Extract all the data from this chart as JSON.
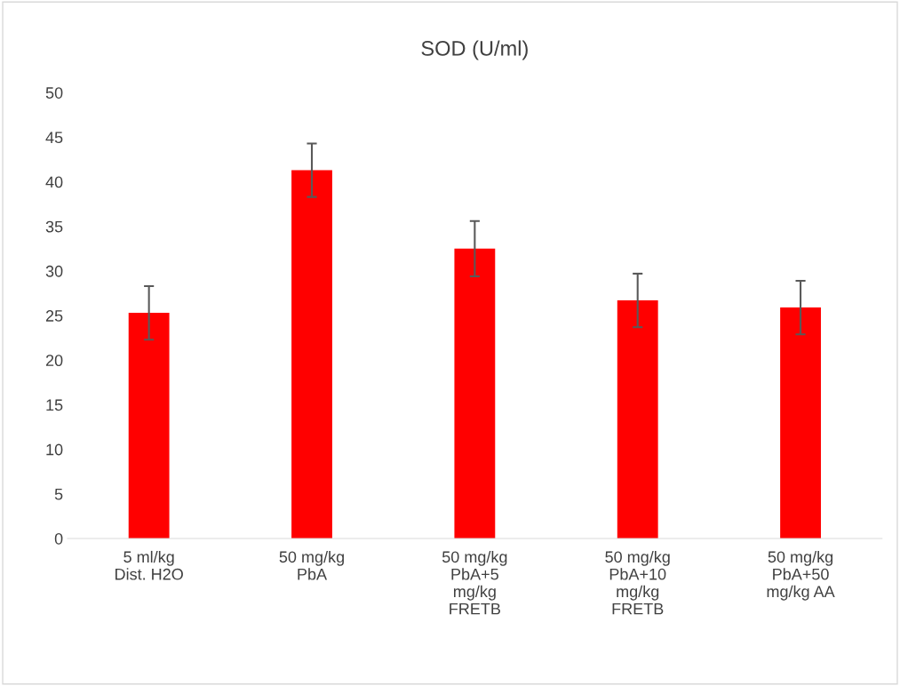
{
  "chart_data": {
    "type": "bar",
    "title": "SOD (U/ml)",
    "categories": [
      "5 ml/kg\nDist. H2O",
      "50 mg/kg\nPbA",
      "50 mg/kg\nPbA+5\nmg/kg\nFRETB",
      "50 mg/kg\nPbA+10\nmg/kg\nFRETB",
      "50 mg/kg\nPbA+50\nmg/kg AA"
    ],
    "values": [
      25.3,
      41.3,
      32.5,
      26.7,
      25.9
    ],
    "errors": [
      3.0,
      3.0,
      3.1,
      3.0,
      3.0
    ],
    "color": "#ff0000",
    "ylim": [
      0,
      50
    ],
    "yticks": [
      0,
      5,
      10,
      15,
      20,
      25,
      30,
      35,
      40,
      45,
      50
    ],
    "grid": false,
    "legend": false
  }
}
